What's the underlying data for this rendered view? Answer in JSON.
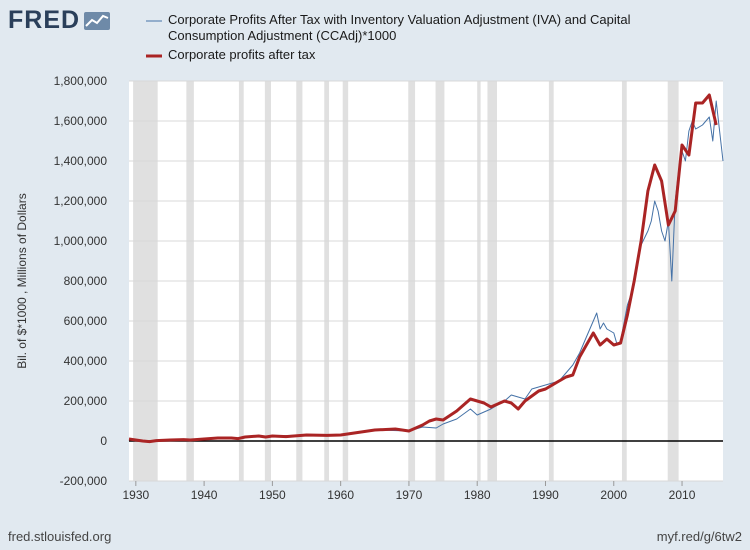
{
  "brand": {
    "logo_text": "FRED",
    "logo_icon": "chart-line-icon"
  },
  "footer": {
    "source": "fred.stlouisfed.org",
    "short_url": "myf.red/g/6tw2"
  },
  "colors": {
    "background": "#e1e9f0",
    "plot_bg": "#ffffff",
    "recession": "#e0e0e0",
    "series_thin": "#4572a7",
    "series_thick": "#aa2424",
    "zero_line": "#000000"
  },
  "chart_data": {
    "type": "line",
    "title": "",
    "xlabel": "",
    "ylabel": "Bil. of $*1000 , Millions of Dollars",
    "xlim": [
      1929,
      2016
    ],
    "ylim": [
      -200000,
      1800000
    ],
    "yticks": [
      -200000,
      0,
      200000,
      400000,
      600000,
      800000,
      1000000,
      1200000,
      1400000,
      1600000,
      1800000
    ],
    "ytick_labels": [
      "-200,000",
      "0",
      "200,000",
      "400,000",
      "600,000",
      "800,000",
      "1,000,000",
      "1,200,000",
      "1,400,000",
      "1,600,000",
      "1,800,000"
    ],
    "xticks": [
      1930,
      1940,
      1950,
      1960,
      1970,
      1980,
      1990,
      2000,
      2010
    ],
    "xtick_labels": [
      "1930",
      "1940",
      "1950",
      "1960",
      "1970",
      "1980",
      "1990",
      "2000",
      "2010"
    ],
    "grid": true,
    "legend_position": "top",
    "recessions": [
      [
        1929.6,
        1933.2
      ],
      [
        1937.4,
        1938.5
      ],
      [
        1945.1,
        1945.8
      ],
      [
        1948.9,
        1949.8
      ],
      [
        1953.5,
        1954.4
      ],
      [
        1957.6,
        1958.3
      ],
      [
        1960.3,
        1961.1
      ],
      [
        1969.9,
        1970.9
      ],
      [
        1973.9,
        1975.2
      ],
      [
        1980.0,
        1980.5
      ],
      [
        1981.5,
        1982.9
      ],
      [
        1990.5,
        1991.2
      ],
      [
        2001.2,
        2001.9
      ],
      [
        2007.9,
        2009.5
      ]
    ],
    "series": [
      {
        "name": "Corporate Profits After Tax with Inventory Valuation Adjustment (IVA) and Capital Consumption Adjustment (CCAdj)*1000",
        "style": "thin",
        "x": [
          1947,
          1950,
          1955,
          1960,
          1965,
          1970,
          1972,
          1974,
          1975,
          1977,
          1979,
          1980,
          1982,
          1984,
          1985,
          1987,
          1988,
          1990,
          1992,
          1994,
          1995,
          1996,
          1997,
          1997.5,
          1998,
          1998.5,
          1999,
          2000,
          2000.5,
          2001,
          2001.5,
          2002,
          2003,
          2004,
          2005,
          2005.5,
          2006,
          2006.5,
          2007,
          2007.5,
          2008,
          2008.5,
          2009,
          2009.5,
          2010,
          2010.5,
          2011,
          2011.5,
          2012,
          2013,
          2014,
          2014.5,
          2015,
          2015.5,
          2016
        ],
        "y": [
          20000,
          25000,
          30000,
          32000,
          55000,
          50000,
          70000,
          65000,
          85000,
          110000,
          160000,
          130000,
          160000,
          200000,
          230000,
          210000,
          260000,
          280000,
          300000,
          380000,
          440000,
          520000,
          600000,
          640000,
          560000,
          590000,
          560000,
          540000,
          480000,
          500000,
          590000,
          680000,
          780000,
          980000,
          1050000,
          1100000,
          1200000,
          1150000,
          1050000,
          1000000,
          1100000,
          800000,
          1200000,
          1350000,
          1450000,
          1400000,
          1550000,
          1600000,
          1560000,
          1580000,
          1620000,
          1500000,
          1700000,
          1550000,
          1400000
        ]
      },
      {
        "name": "Corporate profits after tax",
        "style": "thick",
        "x": [
          1929,
          1930,
          1931,
          1932,
          1933,
          1935,
          1937,
          1938,
          1940,
          1942,
          1944,
          1945,
          1946,
          1948,
          1949,
          1950,
          1952,
          1955,
          1958,
          1960,
          1965,
          1968,
          1970,
          1972,
          1973,
          1974,
          1975,
          1977,
          1979,
          1980,
          1981,
          1982,
          1984,
          1985,
          1986,
          1987,
          1989,
          1990,
          1992,
          1993,
          1994,
          1995,
          1996,
          1997,
          1998,
          1999,
          2000,
          2001,
          2002,
          2003,
          2004,
          2005,
          2006,
          2007,
          2008,
          2009,
          2010,
          2011,
          2012,
          2013,
          2014,
          2015
        ],
        "y": [
          10000,
          5000,
          0,
          -3000,
          2000,
          5000,
          7000,
          5000,
          10000,
          15000,
          15000,
          12000,
          20000,
          25000,
          20000,
          25000,
          22000,
          30000,
          28000,
          30000,
          55000,
          60000,
          50000,
          80000,
          100000,
          110000,
          105000,
          150000,
          210000,
          200000,
          190000,
          170000,
          200000,
          190000,
          160000,
          200000,
          250000,
          260000,
          300000,
          320000,
          330000,
          420000,
          480000,
          540000,
          480000,
          510000,
          480000,
          490000,
          630000,
          800000,
          1000000,
          1250000,
          1380000,
          1300000,
          1080000,
          1150000,
          1480000,
          1430000,
          1690000,
          1690000,
          1730000,
          1580000
        ]
      }
    ]
  }
}
